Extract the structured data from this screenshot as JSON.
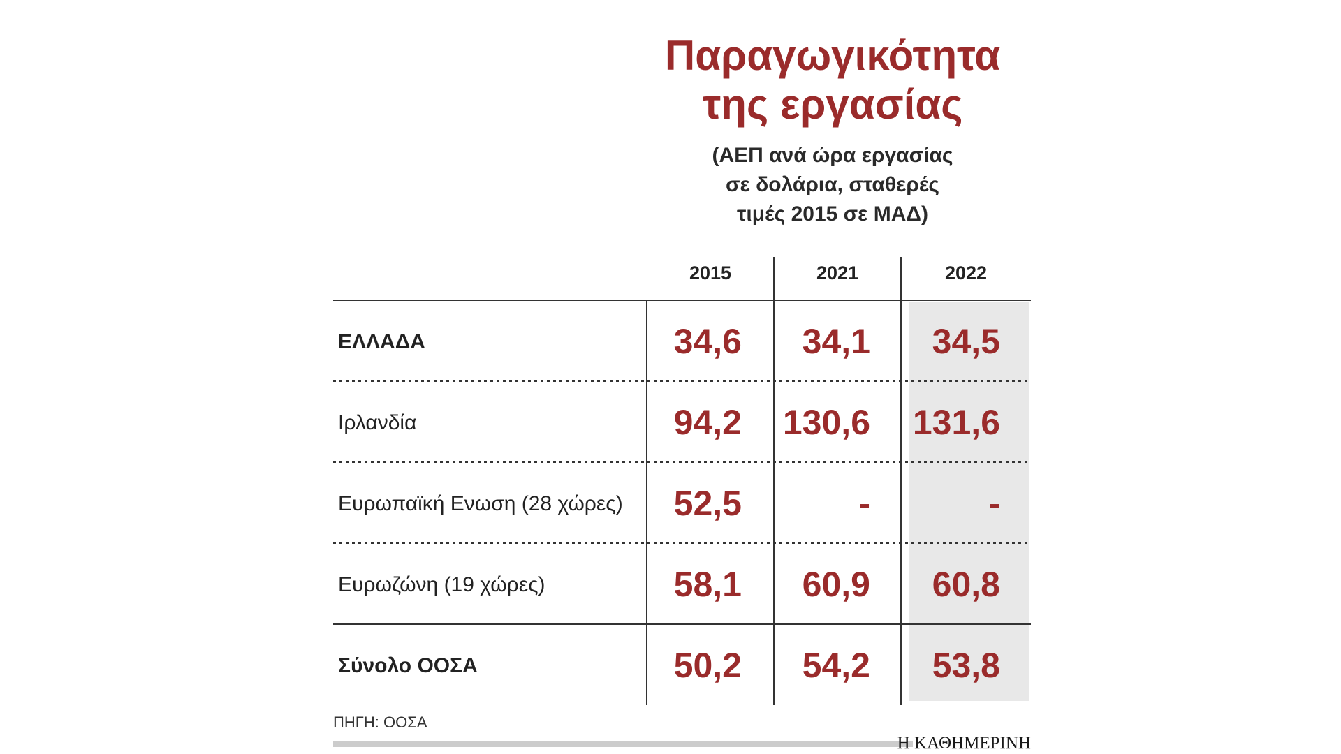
{
  "title": [
    "Παραγωγικότητα",
    "της εργασίας"
  ],
  "subtitle": [
    "(ΑΕΠ ανά ώρα εργασίας",
    "σε δολάρια, σταθερές",
    "τιμές 2015 σε ΜΑΔ)"
  ],
  "source": "ΠΗΓΗ: ΟΟΣΑ",
  "brand": "Η ΚΑΘΗΜΕΡΙΝΗ",
  "colors": {
    "accent": "#9a2b2b",
    "highlight_column": "#e8e8e8",
    "text": "#222222",
    "rule": "#333333"
  },
  "chart_data": {
    "type": "table",
    "columns": [
      "2015",
      "2021",
      "2022"
    ],
    "highlight_column": "2022",
    "rows": [
      {
        "label": "ΕΛΛΑΔΑ",
        "bold": true,
        "values": [
          "34,6",
          "34,1",
          "34,5"
        ]
      },
      {
        "label": "Ιρλανδία",
        "bold": false,
        "values": [
          "94,2",
          "130,6",
          "131,6"
        ]
      },
      {
        "label": "Ευρωπαϊκή Ενωση (28 χώρες)",
        "bold": false,
        "values": [
          "52,5",
          "-",
          "-"
        ]
      },
      {
        "label": "Ευρωζώνη (19 χώρες)",
        "bold": false,
        "values": [
          "58,1",
          "60,9",
          "60,8"
        ]
      },
      {
        "label": "Σύνολο ΟΟΣΑ",
        "bold": true,
        "values": [
          "50,2",
          "54,2",
          "53,8"
        ]
      }
    ]
  }
}
